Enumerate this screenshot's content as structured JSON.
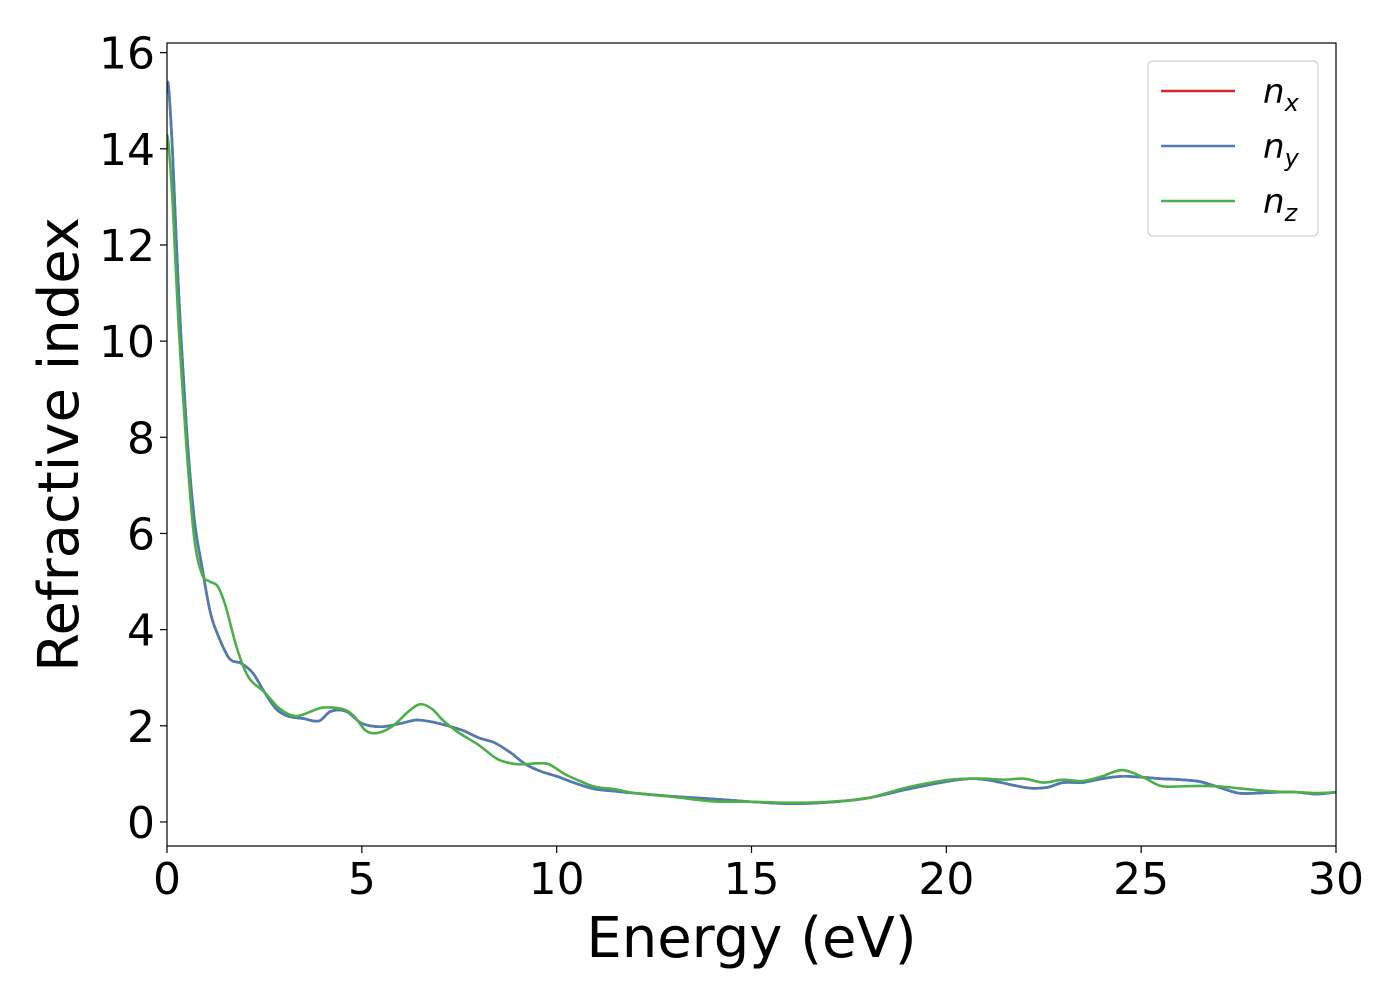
{
  "chart_data": {
    "type": "line",
    "title": "",
    "xlabel": "Energy (eV)",
    "ylabel": "Refractive index",
    "xlim": [
      0,
      30
    ],
    "ylim": [
      -0.5,
      16.2
    ],
    "xticks": [
      0,
      5,
      10,
      15,
      20,
      25,
      30
    ],
    "yticks": [
      0,
      2,
      4,
      6,
      8,
      10,
      12,
      14,
      16
    ],
    "xtick_labels": [
      "0",
      "5",
      "10",
      "15",
      "20",
      "25",
      "30"
    ],
    "ytick_labels": [
      "0",
      "2",
      "4",
      "6",
      "8",
      "10",
      "12",
      "14",
      "16"
    ],
    "grid": false,
    "legend_position": "top-right",
    "series": [
      {
        "name": "n",
        "subscript": "x",
        "color": "#d62728",
        "x": [
          0,
          0.05,
          0.15,
          0.3,
          0.5,
          0.7,
          0.9,
          1.1,
          1.3,
          1.6,
          1.9,
          2.2,
          2.5,
          2.8,
          3.1,
          3.5,
          3.9,
          4.2,
          4.6,
          5.0,
          5.5,
          6.0,
          6.4,
          6.8,
          7.2,
          7.6,
          8.0,
          8.4,
          8.8,
          9.2,
          9.6,
          10.0,
          10.5,
          11.0,
          11.5,
          12.0,
          13.0,
          14.0,
          15.0,
          16.0,
          17.0,
          18.0,
          19.0,
          20.0,
          20.6,
          21.0,
          21.4,
          21.8,
          22.2,
          22.6,
          23.0,
          23.5,
          24.0,
          24.5,
          25.0,
          25.5,
          26.0,
          26.5,
          27.0,
          27.5,
          28.0,
          28.5,
          29.0,
          29.5,
          30.0
        ],
        "values": [
          15.4,
          15.2,
          13.8,
          11.0,
          8.2,
          6.3,
          5.3,
          4.4,
          3.9,
          3.4,
          3.3,
          3.1,
          2.7,
          2.35,
          2.2,
          2.15,
          2.1,
          2.3,
          2.3,
          2.05,
          1.98,
          2.05,
          2.12,
          2.08,
          2.0,
          1.9,
          1.75,
          1.65,
          1.45,
          1.2,
          1.05,
          0.95,
          0.8,
          0.68,
          0.64,
          0.6,
          0.53,
          0.48,
          0.42,
          0.38,
          0.41,
          0.5,
          0.68,
          0.84,
          0.9,
          0.88,
          0.82,
          0.75,
          0.7,
          0.72,
          0.82,
          0.82,
          0.9,
          0.95,
          0.93,
          0.9,
          0.88,
          0.84,
          0.72,
          0.6,
          0.6,
          0.62,
          0.62,
          0.58,
          0.62
        ]
      },
      {
        "name": "n",
        "subscript": "y",
        "color": "#4a7db5",
        "x": [
          0,
          0.05,
          0.15,
          0.3,
          0.5,
          0.7,
          0.9,
          1.1,
          1.3,
          1.6,
          1.9,
          2.2,
          2.5,
          2.8,
          3.1,
          3.5,
          3.9,
          4.2,
          4.6,
          5.0,
          5.5,
          6.0,
          6.4,
          6.8,
          7.2,
          7.6,
          8.0,
          8.4,
          8.8,
          9.2,
          9.6,
          10.0,
          10.5,
          11.0,
          11.5,
          12.0,
          13.0,
          14.0,
          15.0,
          16.0,
          17.0,
          18.0,
          19.0,
          20.0,
          20.6,
          21.0,
          21.4,
          21.8,
          22.2,
          22.6,
          23.0,
          23.5,
          24.0,
          24.5,
          25.0,
          25.5,
          26.0,
          26.5,
          27.0,
          27.5,
          28.0,
          28.5,
          29.0,
          29.5,
          30.0
        ],
        "values": [
          15.4,
          15.2,
          13.8,
          11.0,
          8.2,
          6.3,
          5.3,
          4.4,
          3.9,
          3.4,
          3.3,
          3.1,
          2.7,
          2.35,
          2.2,
          2.15,
          2.1,
          2.3,
          2.3,
          2.05,
          1.98,
          2.05,
          2.12,
          2.08,
          2.0,
          1.9,
          1.75,
          1.65,
          1.45,
          1.2,
          1.05,
          0.95,
          0.8,
          0.68,
          0.64,
          0.6,
          0.53,
          0.48,
          0.42,
          0.38,
          0.41,
          0.5,
          0.68,
          0.84,
          0.9,
          0.88,
          0.82,
          0.75,
          0.7,
          0.72,
          0.82,
          0.82,
          0.9,
          0.95,
          0.93,
          0.9,
          0.88,
          0.84,
          0.72,
          0.6,
          0.6,
          0.62,
          0.62,
          0.58,
          0.62
        ]
      },
      {
        "name": "n",
        "subscript": "z",
        "color": "#4daf4a",
        "x": [
          0,
          0.05,
          0.15,
          0.3,
          0.5,
          0.7,
          0.9,
          1.1,
          1.3,
          1.5,
          1.8,
          2.1,
          2.5,
          2.9,
          3.3,
          3.7,
          4.0,
          4.5,
          4.8,
          5.1,
          5.4,
          5.8,
          6.2,
          6.5,
          6.8,
          7.1,
          7.5,
          8.0,
          8.5,
          9.0,
          9.5,
          9.8,
          10.2,
          10.6,
          11.0,
          11.5,
          12.0,
          13.0,
          14.0,
          15.0,
          16.0,
          17.0,
          18.0,
          19.0,
          20.0,
          20.6,
          21.0,
          21.5,
          22.0,
          22.5,
          23.0,
          23.5,
          24.0,
          24.5,
          25.0,
          25.5,
          26.0,
          26.5,
          27.0,
          27.5,
          28.0,
          28.5,
          29.0,
          29.5,
          30.0
        ],
        "values": [
          14.3,
          14.0,
          12.8,
          10.3,
          7.8,
          5.9,
          5.15,
          5.0,
          4.9,
          4.5,
          3.6,
          3.0,
          2.7,
          2.35,
          2.2,
          2.3,
          2.38,
          2.35,
          2.2,
          1.9,
          1.85,
          2.0,
          2.3,
          2.45,
          2.35,
          2.1,
          1.85,
          1.6,
          1.3,
          1.2,
          1.22,
          1.2,
          1.0,
          0.85,
          0.73,
          0.68,
          0.6,
          0.52,
          0.43,
          0.42,
          0.4,
          0.42,
          0.5,
          0.72,
          0.87,
          0.9,
          0.9,
          0.88,
          0.9,
          0.82,
          0.88,
          0.85,
          0.95,
          1.08,
          0.95,
          0.75,
          0.74,
          0.75,
          0.74,
          0.7,
          0.66,
          0.63,
          0.62,
          0.6,
          0.62
        ]
      }
    ]
  }
}
